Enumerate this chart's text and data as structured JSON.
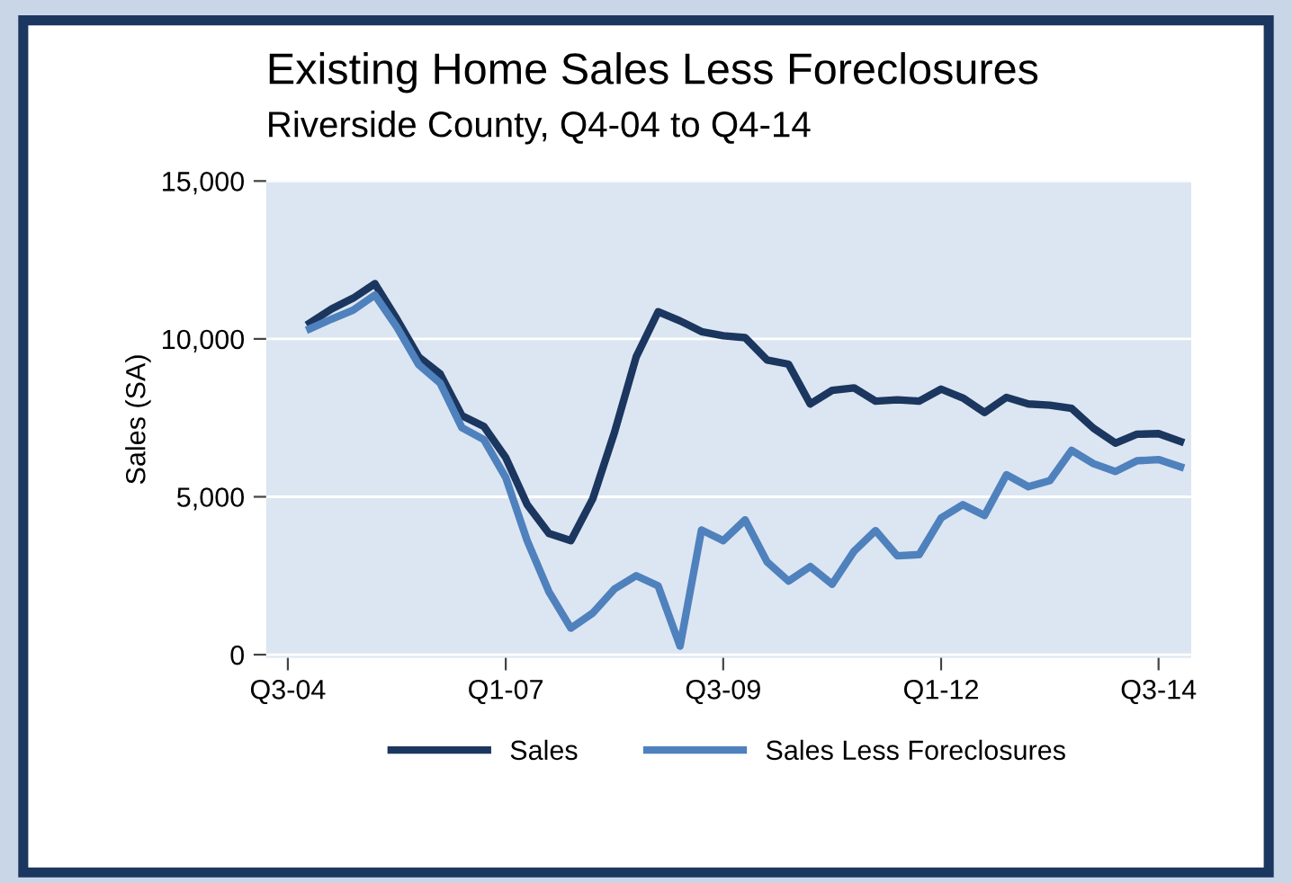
{
  "chart_data": {
    "type": "line",
    "title": "Existing Home Sales Less Foreclosures",
    "subtitle": "Riverside County, Q4-04 to Q4-14",
    "ylabel": "Sales (SA)",
    "x": [
      "2004-10",
      "2005-01",
      "2005-04",
      "2005-07",
      "2005-10",
      "2006-01",
      "2006-04",
      "2006-07",
      "2006-10",
      "2007-01",
      "2007-04",
      "2007-07",
      "2007-10",
      "2008-01",
      "2008-04",
      "2008-07",
      "2008-10",
      "2009-01",
      "2009-04",
      "2009-07",
      "2009-10",
      "2010-01",
      "2010-04",
      "2010-07",
      "2010-10",
      "2011-01",
      "2011-04",
      "2011-07",
      "2011-10",
      "2012-01",
      "2012-04",
      "2012-07",
      "2012-10",
      "2013-01",
      "2013-04",
      "2013-07",
      "2013-10",
      "2014-01",
      "2014-04",
      "2014-07",
      "2014-10"
    ],
    "series": [
      {
        "name": "Sales",
        "color": "#1b365f",
        "values": [
          10500,
          10950,
          11290,
          11750,
          10630,
          9430,
          8890,
          7570,
          7230,
          6240,
          4750,
          3840,
          3610,
          4940,
          7040,
          9430,
          10860,
          10570,
          10230,
          10100,
          10040,
          9330,
          9200,
          7940,
          8370,
          8450,
          8030,
          8070,
          8030,
          8410,
          8130,
          7670,
          8150,
          7940,
          7900,
          7800,
          7170,
          6700,
          6980,
          7000,
          6750
        ]
      },
      {
        "name": "Sales Less Foreclosures",
        "color": "#4f81bd",
        "values": [
          10320,
          10630,
          10910,
          11390,
          10380,
          9180,
          8600,
          7190,
          6810,
          5610,
          3610,
          1990,
          840,
          1320,
          2080,
          2500,
          2180,
          270,
          3950,
          3610,
          4270,
          2940,
          2330,
          2790,
          2230,
          3280,
          3930,
          3130,
          3170,
          4330,
          4750,
          4410,
          5700,
          5320,
          5510,
          6470,
          6050,
          5800,
          6140,
          6180,
          5950
        ]
      }
    ],
    "xlim": [
      "2004-04",
      "2014-11-15"
    ],
    "ylim": [
      -100,
      15000
    ],
    "xticks": [
      {
        "value": "2004-07",
        "label": "Q3-04"
      },
      {
        "value": "2007-01",
        "label": "Q1-07"
      },
      {
        "value": "2009-07",
        "label": "Q3-09"
      },
      {
        "value": "2012-01",
        "label": "Q1-12"
      },
      {
        "value": "2014-07",
        "label": "Q3-14"
      }
    ],
    "yticks": [
      {
        "value": 0,
        "label": "0"
      },
      {
        "value": 5000,
        "label": "5,000"
      },
      {
        "value": 10000,
        "label": "10,000"
      },
      {
        "value": 15000,
        "label": "15,000"
      }
    ],
    "grid": "y",
    "legend": "bottom",
    "marker": "none",
    "line_style": "solid"
  }
}
